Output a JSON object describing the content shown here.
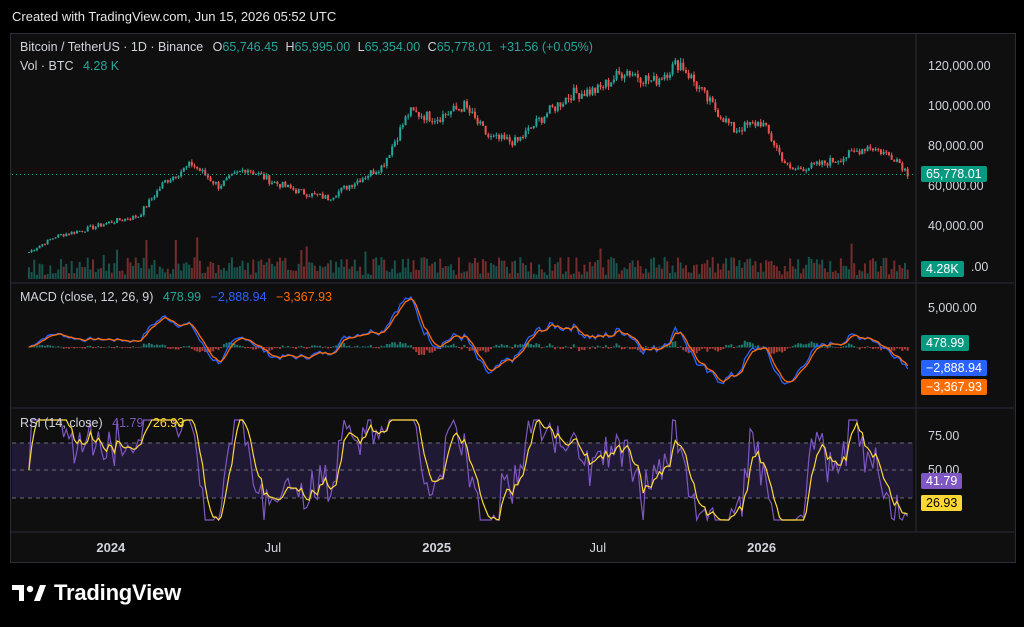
{
  "caption": "Created with TradingView.com, Jun 15, 2026 05:52 UTC",
  "header": {
    "symbol": "Bitcoin / TetherUS · 1D · Binance",
    "o_label": "O",
    "o_value": "65,746.45",
    "h_label": "H",
    "h_value": "65,995.00",
    "l_label": "L",
    "l_value": "65,354.00",
    "c_label": "C",
    "c_value": "65,778.01",
    "change": "+31.56 (+0.05%)",
    "vol_label": "Vol · BTC",
    "vol_value": "4.28 K"
  },
  "macd_legend": {
    "label": "MACD (close, 12, 26, 9)",
    "hist": "478.99",
    "macd": "−2,888.94",
    "signal": "−3,367.93"
  },
  "rsi_legend": {
    "label": "RSI (14, close)",
    "rsi": "41.79",
    "ma": "26.93"
  },
  "badges": {
    "price": "65,778.01",
    "volume": "4.28K",
    "macd_hist": "478.99",
    "macd_line": "−2,888.94",
    "macd_signal": "−3,367.93",
    "rsi": "41.79",
    "rsi_ma": "26.93"
  },
  "colors": {
    "up": "#26a69a",
    "down": "#ef5350",
    "macd": "#2962ff",
    "signal": "#ff6d00",
    "rsi": "#7e57c2",
    "rsi_ma": "#fdd835",
    "rsi_band": "#2b1f4d"
  },
  "logo_text": "TradingView",
  "chart_data": {
    "type": "candlestick",
    "x_tick_labels": [
      "2024",
      "Jul",
      "2025",
      "Jul",
      "2026"
    ],
    "x_tick_dates": [
      "2024-01-01",
      "2024-07-01",
      "2025-01-01",
      "2025-07-01",
      "2026-01-01"
    ],
    "price_axis": {
      "ticks": [
        120000,
        100000,
        80000,
        60000,
        40000
      ],
      "tick_labels": [
        "120,000.00",
        "100,000.00",
        "80,000.00",
        "60,000.00",
        "40,000.00"
      ]
    },
    "macd_axis": {
      "ticks": [
        5000
      ],
      "tick_labels": [
        "5,000.00"
      ]
    },
    "rsi_axis": {
      "ticks": [
        75,
        50
      ],
      "tick_labels": [
        "75.00",
        "50.00"
      ],
      "bands": [
        30,
        50,
        70
      ]
    },
    "price_series": [
      {
        "date": "2023-10-01",
        "close": 27000
      },
      {
        "date": "2023-11-01",
        "close": 35000
      },
      {
        "date": "2023-12-01",
        "close": 38000
      },
      {
        "date": "2024-01-01",
        "close": 42000
      },
      {
        "date": "2024-02-01",
        "close": 45000
      },
      {
        "date": "2024-03-01",
        "close": 62000
      },
      {
        "date": "2024-04-01",
        "close": 71000
      },
      {
        "date": "2024-05-01",
        "close": 60000
      },
      {
        "date": "2024-06-01",
        "close": 69000
      },
      {
        "date": "2024-07-01",
        "close": 62000
      },
      {
        "date": "2024-08-01",
        "close": 57000
      },
      {
        "date": "2024-09-01",
        "close": 54000
      },
      {
        "date": "2024-10-01",
        "close": 62000
      },
      {
        "date": "2024-11-01",
        "close": 70000
      },
      {
        "date": "2024-12-01",
        "close": 97000
      },
      {
        "date": "2025-01-01",
        "close": 94000
      },
      {
        "date": "2025-02-01",
        "close": 100000
      },
      {
        "date": "2025-03-01",
        "close": 84000
      },
      {
        "date": "2025-04-01",
        "close": 82000
      },
      {
        "date": "2025-05-01",
        "close": 95000
      },
      {
        "date": "2025-06-01",
        "close": 106000
      },
      {
        "date": "2025-07-01",
        "close": 108000
      },
      {
        "date": "2025-08-01",
        "close": 118000
      },
      {
        "date": "2025-09-01",
        "close": 112000
      },
      {
        "date": "2025-10-01",
        "close": 122000
      },
      {
        "date": "2025-11-01",
        "close": 103000
      },
      {
        "date": "2025-12-01",
        "close": 88000
      },
      {
        "date": "2026-01-01",
        "close": 92000
      },
      {
        "date": "2026-02-01",
        "close": 68000
      },
      {
        "date": "2026-03-01",
        "close": 70000
      },
      {
        "date": "2026-04-01",
        "close": 74000
      },
      {
        "date": "2026-05-01",
        "close": 80000
      },
      {
        "date": "2026-06-01",
        "close": 74000
      },
      {
        "date": "2026-06-15",
        "close": 65778.01
      }
    ],
    "last_close": 65778.01,
    "last_volume_k": 4.28,
    "macd_last": {
      "histogram": 478.99,
      "macd": -2888.94,
      "signal": -3367.93
    },
    "rsi_last": {
      "rsi": 41.79,
      "rsi_ma": 26.93
    },
    "grid": true,
    "legend_placement": "top-left"
  }
}
